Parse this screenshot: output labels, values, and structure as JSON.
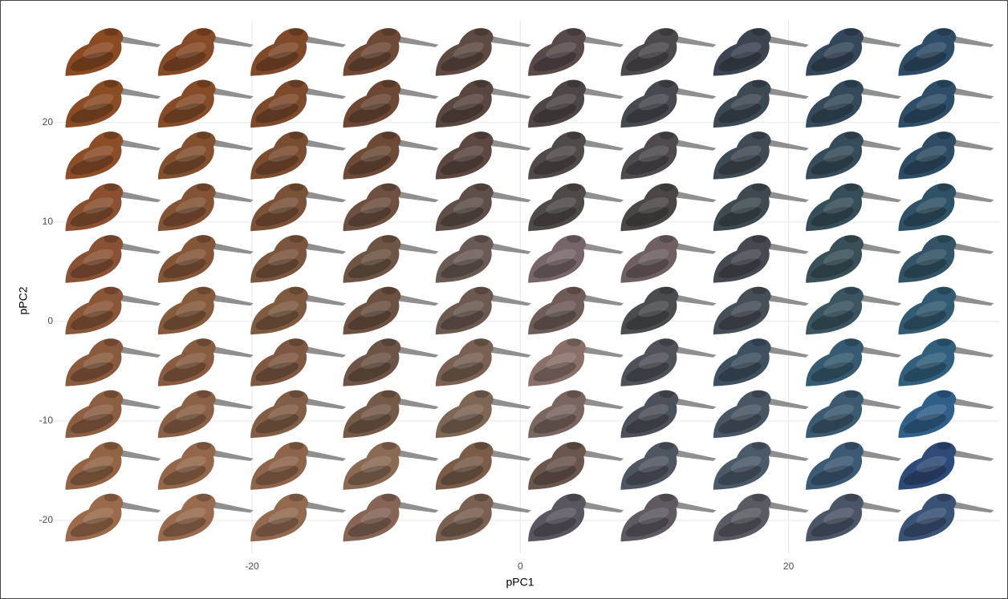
{
  "chart_data": {
    "type": "glyph-scatter",
    "x_label": "pPC1",
    "y_label": "pPC2",
    "xlim": [
      -35.2,
      35.7
    ],
    "ylim": [
      -23.3,
      30.3
    ],
    "xticks": [
      -20,
      0,
      20
    ],
    "yticks": [
      -20,
      -10,
      0,
      10,
      20
    ],
    "grid": true,
    "x": [
      -30.5,
      -23.6,
      -16.7,
      -9.8,
      -2.9,
      4.0,
      10.9,
      17.8,
      24.7,
      31.6,
      -30.5,
      -23.6,
      -16.7,
      -9.8,
      -2.9,
      4.0,
      10.9,
      17.8,
      24.7,
      31.6,
      -30.5,
      -23.6,
      -16.7,
      -9.8,
      -2.9,
      4.0,
      10.9,
      17.8,
      24.7,
      31.6,
      -30.5,
      -23.6,
      -16.7,
      -9.8,
      -2.9,
      4.0,
      10.9,
      17.8,
      24.7,
      31.6,
      -30.5,
      -23.6,
      -16.7,
      -9.8,
      -2.9,
      4.0,
      10.9,
      17.8,
      24.7,
      31.6,
      -30.5,
      -23.6,
      -16.7,
      -9.8,
      -2.9,
      4.0,
      10.9,
      17.8,
      24.7,
      31.6,
      -30.5,
      -23.6,
      -16.7,
      -9.8,
      -2.9,
      4.0,
      10.9,
      17.8,
      24.7,
      31.6,
      -30.5,
      -23.6,
      -16.7,
      -9.8,
      -2.9,
      4.0,
      10.9,
      17.8,
      24.7,
      31.6,
      -30.5,
      -23.6,
      -16.7,
      -9.8,
      -2.9,
      4.0,
      10.9,
      17.8,
      24.7,
      31.6,
      -30.5,
      -23.6,
      -16.7,
      -9.8,
      -2.9,
      4.0,
      10.9,
      17.8,
      24.7,
      31.6
    ],
    "values": [
      27.1,
      27.1,
      27.1,
      27.1,
      27.1,
      27.1,
      27.1,
      27.1,
      27.1,
      27.1,
      21.9,
      21.9,
      21.9,
      21.9,
      21.9,
      21.9,
      21.9,
      21.9,
      21.9,
      21.9,
      16.7,
      16.7,
      16.7,
      16.7,
      16.7,
      16.7,
      16.7,
      16.7,
      16.7,
      16.7,
      11.5,
      11.5,
      11.5,
      11.5,
      11.5,
      11.5,
      11.5,
      11.5,
      11.5,
      11.5,
      6.3,
      6.3,
      6.3,
      6.3,
      6.3,
      6.3,
      6.3,
      6.3,
      6.3,
      6.3,
      1.1,
      1.1,
      1.1,
      1.1,
      1.1,
      1.1,
      1.1,
      1.1,
      1.1,
      1.1,
      -4.1,
      -4.1,
      -4.1,
      -4.1,
      -4.1,
      -4.1,
      -4.1,
      -4.1,
      -4.1,
      -4.1,
      -9.3,
      -9.3,
      -9.3,
      -9.3,
      -9.3,
      -9.3,
      -9.3,
      -9.3,
      -9.3,
      -9.3,
      -14.5,
      -14.5,
      -14.5,
      -14.5,
      -14.5,
      -14.5,
      -14.5,
      -14.5,
      -14.5,
      -14.5,
      -19.7,
      -19.7,
      -19.7,
      -19.7,
      -19.7,
      -19.7,
      -19.7,
      -19.7,
      -19.7,
      -19.7
    ],
    "colors": [
      "#8a4a22",
      "#874a26",
      "#80492a",
      "#6e4a36",
      "#5e4a40",
      "#584a48",
      "#4c4a4c",
      "#3c4450",
      "#34475a",
      "#2e4c66",
      "#8a4c24",
      "#864c28",
      "#7e4a2c",
      "#6c4834",
      "#5a4640",
      "#4e4646",
      "#464a4e",
      "#3c4852",
      "#344a5a",
      "#2e4e68",
      "#8c4e28",
      "#82502e",
      "#7a4c30",
      "#6c4a36",
      "#5c4840",
      "#504a48",
      "#4e4a4e",
      "#404a52",
      "#364c5a",
      "#2e4c64",
      "#8a5030",
      "#845234",
      "#7a5238",
      "#6e5040",
      "#5e5048",
      "#4e4a48",
      "#4a4646",
      "#3e4a50",
      "#364e58",
      "#305266",
      "#8a5234",
      "#845638",
      "#7a563e",
      "#6e5444",
      "#6a5a56",
      "#76666a",
      "#6e6062",
      "#444a50",
      "#3a5058",
      "#325466",
      "#8a5638",
      "#865a3c",
      "#7e5a40",
      "#6c5040",
      "#6c5a50",
      "#6e5c58",
      "#4a4c4e",
      "#464e56",
      "#3a5460",
      "#325a70",
      "#8a5a3e",
      "#885c40",
      "#7e5842",
      "#6e5446",
      "#7a6052",
      "#8a7068",
      "#50525a",
      "#3e5060",
      "#365a70",
      "#30607c",
      "#8c5e42",
      "#8a6046",
      "#825e46",
      "#765a48",
      "#7e6654",
      "#7a6660",
      "#4c5058",
      "#485664",
      "#3c5a70",
      "#30608a",
      "#926444",
      "#94664a",
      "#8e644a",
      "#8a6a52",
      "#7a5c48",
      "#6a564c",
      "#505660",
      "#4a5a68",
      "#3c5a74",
      "#2e4a78",
      "#9a6a4a",
      "#986a4e",
      "#926a50",
      "#866456",
      "#7a6050",
      "#5a5660",
      "#5e5a60",
      "#5a5a62",
      "#4a5668",
      "#3a5276"
    ]
  }
}
